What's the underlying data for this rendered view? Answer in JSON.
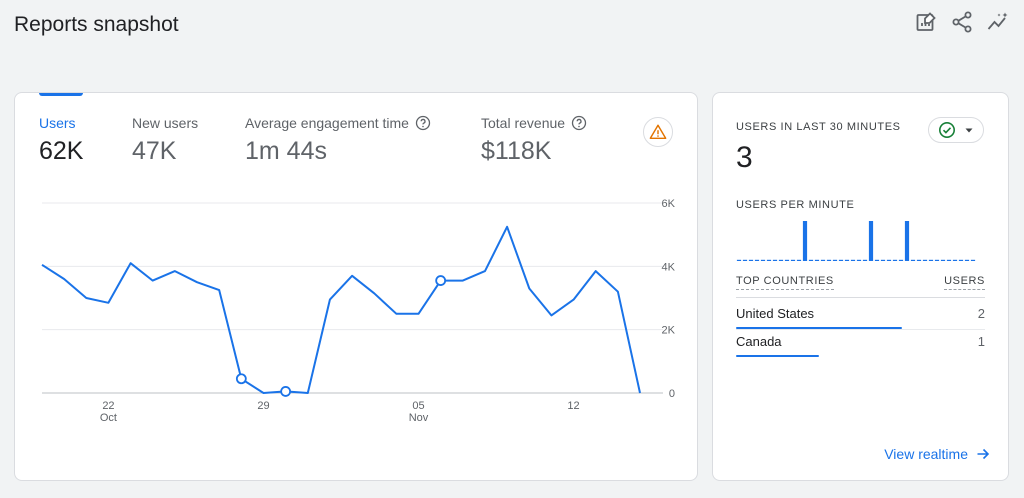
{
  "page": {
    "title": "Reports snapshot"
  },
  "toolbar": {
    "icons": [
      "edit-report-icon",
      "share-icon",
      "insights-icon"
    ]
  },
  "metrics": [
    {
      "label": "Users",
      "value": "62K",
      "active": true,
      "help": false
    },
    {
      "label": "New users",
      "value": "47K",
      "active": false,
      "help": false
    },
    {
      "label": "Average engagement time",
      "value": "1m 44s",
      "active": false,
      "help": true
    },
    {
      "label": "Total revenue",
      "value": "$118K",
      "active": false,
      "help": true
    }
  ],
  "colors": {
    "accent": "#1a73e8",
    "warning": "#e37400",
    "success": "#188038"
  },
  "chart_data": {
    "type": "line",
    "series": [
      {
        "values": [
          4050,
          3600,
          3000,
          2850,
          4100,
          3550,
          3850,
          3500,
          3250,
          450,
          0,
          50,
          0,
          2950,
          3700,
          3150,
          2500,
          2500,
          3550,
          3550,
          3850,
          5250,
          3300,
          2450,
          2950,
          3850,
          3200,
          0
        ]
      }
    ],
    "markers": [
      9,
      11,
      18
    ],
    "ylim": [
      0,
      6000
    ],
    "yticks": [
      {
        "value": 0,
        "label": "0"
      },
      {
        "value": 2000,
        "label": "2K"
      },
      {
        "value": 4000,
        "label": "4K"
      },
      {
        "value": 6000,
        "label": "6K"
      }
    ],
    "xticks": [
      {
        "index": 3,
        "day": "22",
        "month": "Oct"
      },
      {
        "index": 10,
        "day": "29",
        "month": ""
      },
      {
        "index": 17,
        "day": "05",
        "month": "Nov"
      },
      {
        "index": 24,
        "day": "12",
        "month": ""
      }
    ],
    "grid": true
  },
  "realtime": {
    "title": "USERS IN LAST 30 MINUTES",
    "value": "3",
    "per_minute_label": "USERS PER MINUTE",
    "per_minute": [
      0,
      0,
      0,
      0,
      0,
      0,
      0,
      0,
      0,
      0,
      0,
      1,
      0,
      0,
      0,
      0,
      0,
      0,
      0,
      0,
      0,
      0,
      1,
      0,
      0,
      0,
      0,
      0,
      1,
      0,
      0,
      0,
      0,
      0,
      0,
      0,
      0,
      0,
      0,
      0
    ],
    "countries_header": "TOP COUNTRIES",
    "users_header": "USERS",
    "countries": [
      {
        "name": "United States",
        "users": "2",
        "share": 1.0
      },
      {
        "name": "Canada",
        "users": "1",
        "share": 0.5
      }
    ],
    "view_label": "View realtime"
  }
}
